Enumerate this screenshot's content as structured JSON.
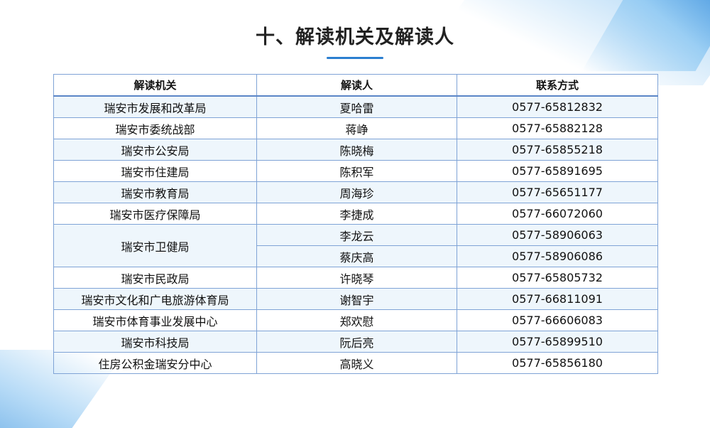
{
  "title": "十、解读机关及解读人",
  "table": {
    "headers": [
      "解读机关",
      "解读人",
      "联系方式"
    ],
    "rows": [
      {
        "org": "瑞安市发展和改革局",
        "persons": [
          {
            "name": "夏哈雷",
            "phone": "0577-65812832"
          }
        ]
      },
      {
        "org": "瑞安市委统战部",
        "persons": [
          {
            "name": "蒋峥",
            "phone": "0577-65882128"
          }
        ]
      },
      {
        "org": "瑞安市公安局",
        "persons": [
          {
            "name": "陈晓梅",
            "phone": "0577-65855218"
          }
        ]
      },
      {
        "org": "瑞安市住建局",
        "persons": [
          {
            "name": "陈积军",
            "phone": "0577-65891695"
          }
        ]
      },
      {
        "org": "瑞安市教育局",
        "persons": [
          {
            "name": "周海珍",
            "phone": "0577-65651177"
          }
        ]
      },
      {
        "org": "瑞安市医疗保障局",
        "persons": [
          {
            "name": "李捷成",
            "phone": "0577-66072060"
          }
        ]
      },
      {
        "org": "瑞安市卫健局",
        "persons": [
          {
            "name": "李龙云",
            "phone": "0577-58906063"
          },
          {
            "name": "蔡庆高",
            "phone": "0577-58906086"
          }
        ]
      },
      {
        "org": "瑞安市民政局",
        "persons": [
          {
            "name": "许晓琴",
            "phone": "0577-65805732"
          }
        ]
      },
      {
        "org": "瑞安市文化和广电旅游体育局",
        "persons": [
          {
            "name": "谢智宇",
            "phone": "0577-66811091"
          }
        ]
      },
      {
        "org": "瑞安市体育事业发展中心",
        "persons": [
          {
            "name": "郑欢慰",
            "phone": "0577-66606083"
          }
        ]
      },
      {
        "org": "瑞安市科技局",
        "persons": [
          {
            "name": "阮后亮",
            "phone": "0577-65899510"
          }
        ]
      },
      {
        "org": "住房公积金瑞安分中心",
        "persons": [
          {
            "name": "高晓义",
            "phone": "0577-65856180"
          }
        ]
      }
    ]
  },
  "colors": {
    "accent": "#2b7fd0",
    "row_stripe": "#eef6fc",
    "border": "#7fa3d6"
  }
}
